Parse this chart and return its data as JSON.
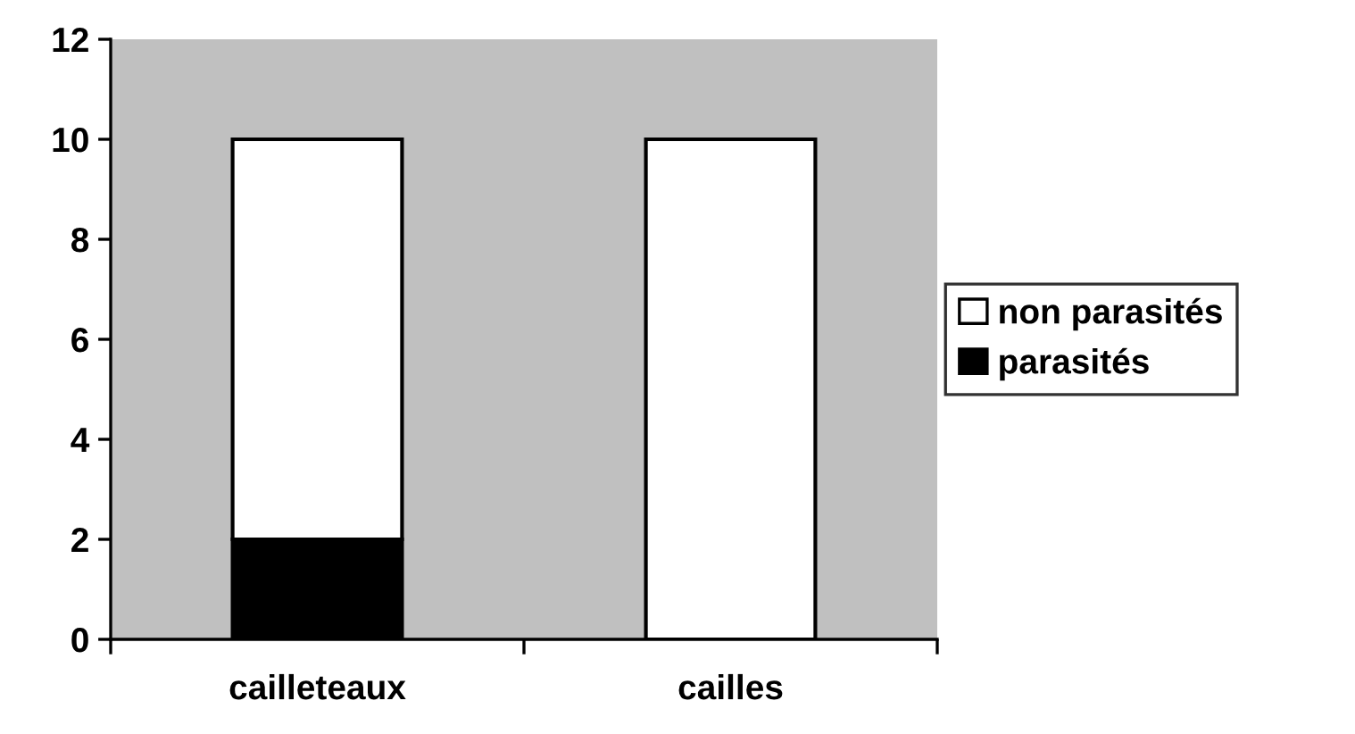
{
  "chart_data": {
    "type": "bar",
    "stacked": true,
    "categories": [
      "cailleteaux",
      "cailles"
    ],
    "series": [
      {
        "name": "parasités",
        "color": "#000000",
        "values": [
          2,
          0
        ]
      },
      {
        "name": "non parasités",
        "color": "#ffffff",
        "values": [
          8,
          10
        ]
      }
    ],
    "ylim": [
      0,
      12
    ],
    "yticks": [
      0,
      2,
      4,
      6,
      8,
      10,
      12
    ],
    "grid": false,
    "legend": "right"
  }
}
